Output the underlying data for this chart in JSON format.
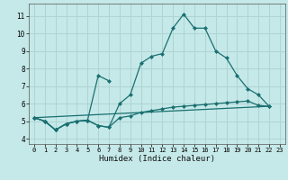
{
  "xlabel": "Humidex (Indice chaleur)",
  "xlim": [
    -0.5,
    23.5
  ],
  "ylim": [
    3.7,
    11.7
  ],
  "yticks": [
    4,
    5,
    6,
    7,
    8,
    9,
    10,
    11
  ],
  "xticks": [
    0,
    1,
    2,
    3,
    4,
    5,
    6,
    7,
    8,
    9,
    10,
    11,
    12,
    13,
    14,
    15,
    16,
    17,
    18,
    19,
    20,
    21,
    22,
    23
  ],
  "bg_color": "#c5e8e8",
  "grid_color": "#aed4d4",
  "line_color": "#1a7070",
  "line1_x": [
    0,
    1,
    2,
    3,
    4,
    5,
    6,
    7,
    8,
    9,
    10,
    11,
    12,
    13,
    14,
    15,
    16,
    17,
    18,
    19,
    20,
    21,
    22
  ],
  "line1_y": [
    5.2,
    5.0,
    4.5,
    4.85,
    5.0,
    5.05,
    4.75,
    4.65,
    6.0,
    6.5,
    8.3,
    8.7,
    8.85,
    10.3,
    11.1,
    10.3,
    10.3,
    9.0,
    8.6,
    7.6,
    6.85,
    6.5,
    5.85
  ],
  "line2_x": [
    0,
    1,
    2,
    3,
    4,
    5,
    6,
    7
  ],
  "line2_y": [
    5.2,
    5.0,
    4.5,
    4.85,
    5.0,
    5.05,
    7.6,
    7.3
  ],
  "line3_x": [
    0,
    1,
    2,
    3,
    4,
    5,
    6,
    7,
    8,
    9,
    10,
    11,
    12,
    13,
    14,
    15,
    16,
    17,
    18,
    19,
    20,
    21,
    22
  ],
  "line3_y": [
    5.2,
    5.0,
    4.5,
    4.85,
    5.0,
    5.05,
    4.75,
    4.65,
    5.2,
    5.3,
    5.5,
    5.6,
    5.7,
    5.8,
    5.85,
    5.9,
    5.95,
    6.0,
    6.05,
    6.1,
    6.15,
    5.9,
    5.85
  ],
  "trend_x": [
    0,
    22
  ],
  "trend_y": [
    5.2,
    5.85
  ]
}
